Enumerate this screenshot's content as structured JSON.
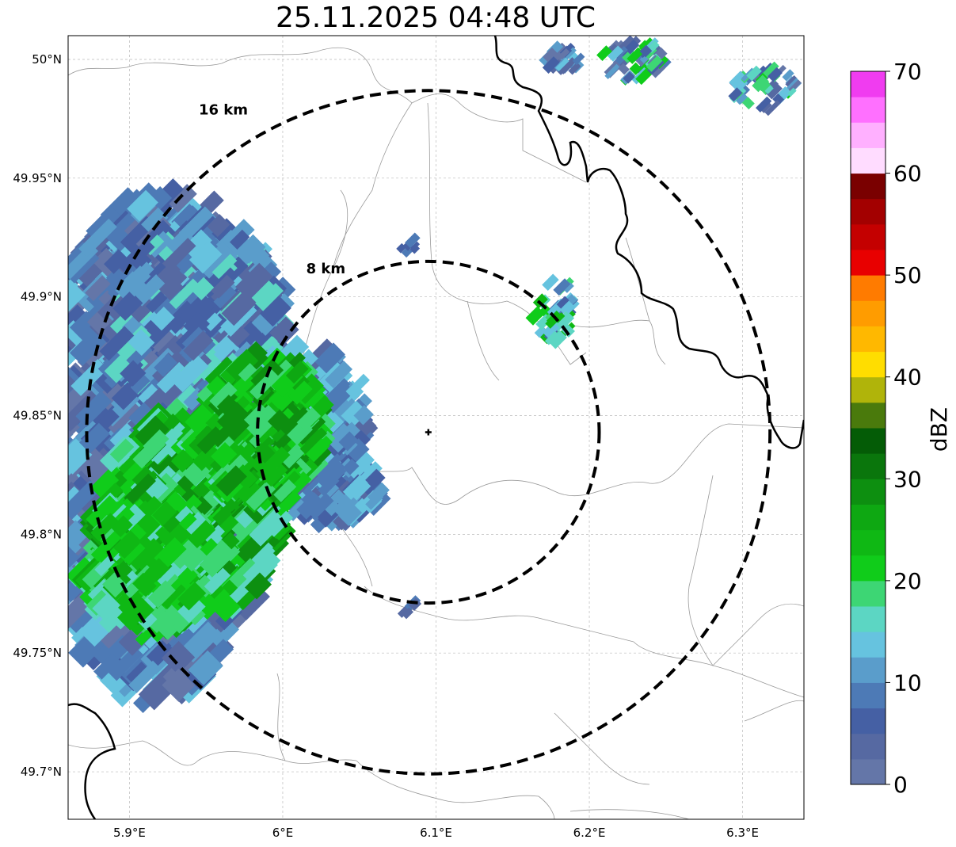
{
  "title": "25.11.2025 04:48 UTC",
  "map": {
    "lon_range": [
      5.86,
      6.34
    ],
    "lat_range": [
      49.68,
      50.01
    ],
    "lon_ticks": [
      {
        "value": 5.9,
        "label": "5.9°E"
      },
      {
        "value": 6.0,
        "label": "6°E"
      },
      {
        "value": 6.1,
        "label": "6.1°E"
      },
      {
        "value": 6.2,
        "label": "6.2°E"
      },
      {
        "value": 6.3,
        "label": "6.3°E"
      }
    ],
    "lat_ticks": [
      {
        "value": 50.0,
        "label": "50°N"
      },
      {
        "value": 49.95,
        "label": "49.95°N"
      },
      {
        "value": 49.9,
        "label": "49.9°N"
      },
      {
        "value": 49.85,
        "label": "49.85°N"
      },
      {
        "value": 49.8,
        "label": "49.8°N"
      },
      {
        "value": 49.75,
        "label": "49.75°N"
      },
      {
        "value": 49.7,
        "label": "49.7°N"
      }
    ],
    "gridlines": true,
    "radar_site": {
      "lon": 6.095,
      "lat": 49.843
    },
    "range_rings": [
      {
        "radius_km": 8,
        "label": "8 km"
      },
      {
        "radius_km": 16,
        "label": "16 km"
      }
    ]
  },
  "colorbar": {
    "label": "dBZ",
    "min": 0,
    "max": 70,
    "ticks": [
      "0",
      "10",
      "20",
      "30",
      "40",
      "50",
      "60",
      "70"
    ],
    "colors": [
      "#6476a8",
      "#5669a2",
      "#4560a4",
      "#4d7ab6",
      "#5a9dcb",
      "#66c3df",
      "#5cd6c3",
      "#3dd674",
      "#10cc1a",
      "#0fb814",
      "#0ea812",
      "#0d8f10",
      "#0a760c",
      "#045c06",
      "#4a7a0c",
      "#b0b40a",
      "#ffdd00",
      "#ffb800",
      "#ff9c00",
      "#ff7b00",
      "#e80000",
      "#c40000",
      "#a30000",
      "#7a0000",
      "#ffdcff",
      "#ffb0ff",
      "#ff70ff",
      "#f03cf0"
    ]
  }
}
